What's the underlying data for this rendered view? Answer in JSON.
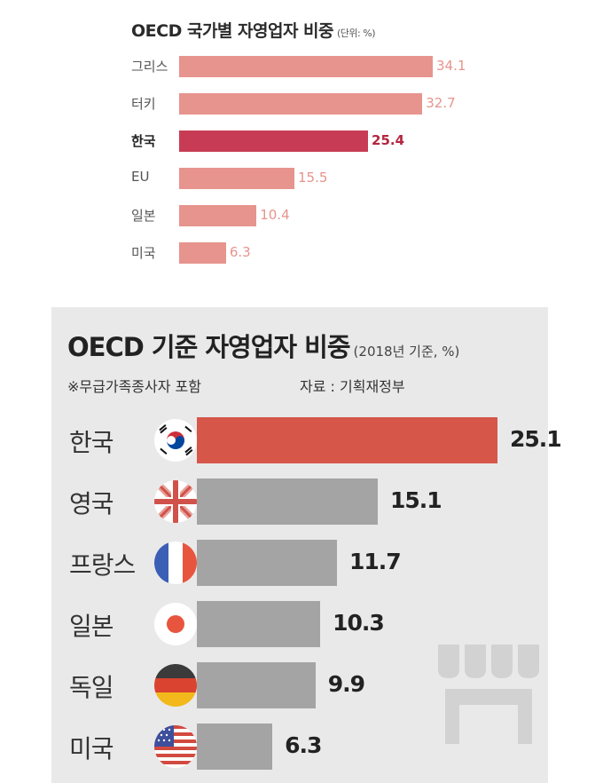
{
  "chart_data": [
    {
      "type": "bar",
      "orientation": "horizontal",
      "title": "OECD 국가별 자영업자 비중",
      "unit": "(단위: %)",
      "categories": [
        "그리스",
        "터키",
        "한국",
        "EU",
        "일본",
        "미국"
      ],
      "values": [
        34.1,
        32.7,
        25.4,
        15.5,
        10.4,
        6.3
      ],
      "value_labels": [
        "34.1",
        "32.7",
        "25.4",
        "15.5",
        "10.4",
        "6.3"
      ],
      "highlight": "한국",
      "colors": {
        "bar": "#e6948d",
        "highlight": "#c73c54"
      }
    },
    {
      "type": "bar",
      "orientation": "horizontal",
      "title": "OECD 기준 자영업자 비중",
      "unit": "(2018년 기준, %)",
      "note": "※무급가족종사자 포함",
      "source": "자료 : 기획재정부",
      "categories": [
        "한국",
        "영국",
        "프랑스",
        "일본",
        "독일",
        "미국"
      ],
      "values": [
        25.1,
        15.1,
        11.7,
        10.3,
        9.9,
        6.3
      ],
      "value_labels": [
        "25.1",
        "15.1",
        "11.7",
        "10.3",
        "9.9",
        "6.3"
      ],
      "flags": [
        "korea-flag-icon",
        "uk-flag-icon",
        "france-flag-icon",
        "japan-flag-icon",
        "germany-flag-icon",
        "usa-flag-icon"
      ],
      "highlight": "한국",
      "colors": {
        "bar": "#a4a4a4",
        "highlight": "#d6564a",
        "panel": "#e9e9e9"
      }
    }
  ]
}
